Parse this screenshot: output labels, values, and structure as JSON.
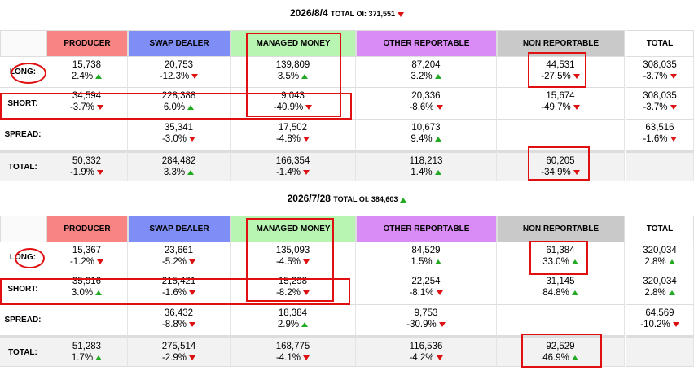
{
  "sections": [
    {
      "date": "2026/8/4",
      "oi_label": "TOTAL OI:",
      "oi": "371,551",
      "oi_trend": "down",
      "columns": [
        "PRODUCER",
        "SWAP DEALER",
        "MANAGED MONEY",
        "OTHER REPORTABLE",
        "NON REPORTABLE",
        "TOTAL"
      ],
      "rows": [
        {
          "label": "LONG:",
          "cells": [
            [
              "15,738",
              "2.4%"
            ],
            [
              "20,753",
              "-12.3%"
            ],
            [
              "139,809",
              "3.5%"
            ],
            [
              "87,204",
              "3.2%"
            ],
            [
              "44,531",
              "-27.5%"
            ],
            [
              "308,035",
              "-3.7%"
            ]
          ]
        },
        {
          "label": "SHORT:",
          "cells": [
            [
              "34,594",
              "-3.7%"
            ],
            [
              "228,388",
              "6.0%"
            ],
            [
              "9,043",
              "-40.9%"
            ],
            [
              "20,336",
              "-8.6%"
            ],
            [
              "15,674",
              "-49.7%"
            ],
            [
              "308,035",
              "-3.7%"
            ]
          ]
        },
        {
          "label": "SPREAD:",
          "cells": [
            null,
            [
              "35,341",
              "-3.0%"
            ],
            [
              "17,502",
              "-4.8%"
            ],
            [
              "10,673",
              "9.4%"
            ],
            null,
            [
              "63,516",
              "-1.6%"
            ]
          ]
        },
        {
          "label": "TOTAL:",
          "cells": [
            [
              "50,332",
              "-1.9%"
            ],
            [
              "284,482",
              "3.3%"
            ],
            [
              "166,354",
              "-1.4%"
            ],
            [
              "118,213",
              "1.4%"
            ],
            [
              "60,205",
              "-34.9%"
            ],
            null
          ]
        }
      ]
    },
    {
      "date": "2026/7/28",
      "oi_label": "TOTAL OI:",
      "oi": "384,603",
      "oi_trend": "up",
      "columns": [
        "PRODUCER",
        "SWAP DEALER",
        "MANAGED MONEY",
        "OTHER REPORTABLE",
        "NON REPORTABLE",
        "TOTAL"
      ],
      "rows": [
        {
          "label": "LONG:",
          "cells": [
            [
              "15,367",
              "-1.2%"
            ],
            [
              "23,661",
              "-5.2%"
            ],
            [
              "135,093",
              "-4.5%"
            ],
            [
              "84,529",
              "1.5%"
            ],
            [
              "61,384",
              "33.0%"
            ],
            [
              "320,034",
              "2.8%"
            ]
          ]
        },
        {
          "label": "SHORT:",
          "cells": [
            [
              "35,916",
              "3.0%"
            ],
            [
              "215,421",
              "-1.6%"
            ],
            [
              "15,298",
              "-8.2%"
            ],
            [
              "22,254",
              "-8.1%"
            ],
            [
              "31,145",
              "84.8%"
            ],
            [
              "320,034",
              "2.8%"
            ]
          ]
        },
        {
          "label": "SPREAD:",
          "cells": [
            null,
            [
              "36,432",
              "-8.8%"
            ],
            [
              "18,384",
              "2.9%"
            ],
            [
              "9,753",
              "-30.9%"
            ],
            null,
            [
              "64,569",
              "-10.2%"
            ]
          ]
        },
        {
          "label": "TOTAL:",
          "cells": [
            [
              "51,283",
              "1.7%"
            ],
            [
              "275,514",
              "-2.9%"
            ],
            [
              "168,775",
              "-4.1%"
            ],
            [
              "116,536",
              "-4.2%"
            ],
            [
              "92,529",
              "46.9%"
            ],
            null
          ]
        }
      ]
    }
  ]
}
